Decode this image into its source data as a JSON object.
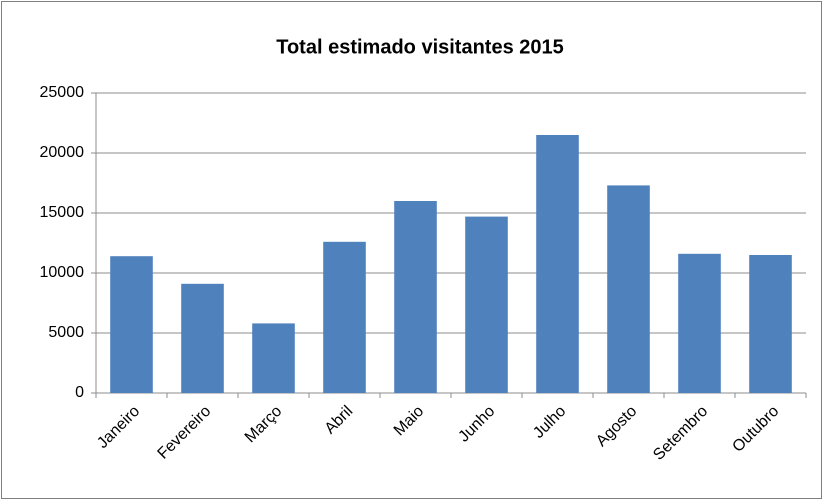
{
  "chart_data": {
    "type": "bar",
    "title": "Total estimado visitantes 2015",
    "categories": [
      "Janeiro",
      "Fevereiro",
      "Março",
      "Abril",
      "Maio",
      "Junho",
      "Julho",
      "Agosto",
      "Setembro",
      "Outubro"
    ],
    "values": [
      11400,
      9100,
      5800,
      12600,
      16000,
      14700,
      21500,
      17300,
      11600,
      11500
    ],
    "color": "#4f81bd",
    "ylim": [
      0,
      25000
    ],
    "yticks": [
      0,
      5000,
      10000,
      15000,
      20000,
      25000
    ],
    "grid": true
  }
}
